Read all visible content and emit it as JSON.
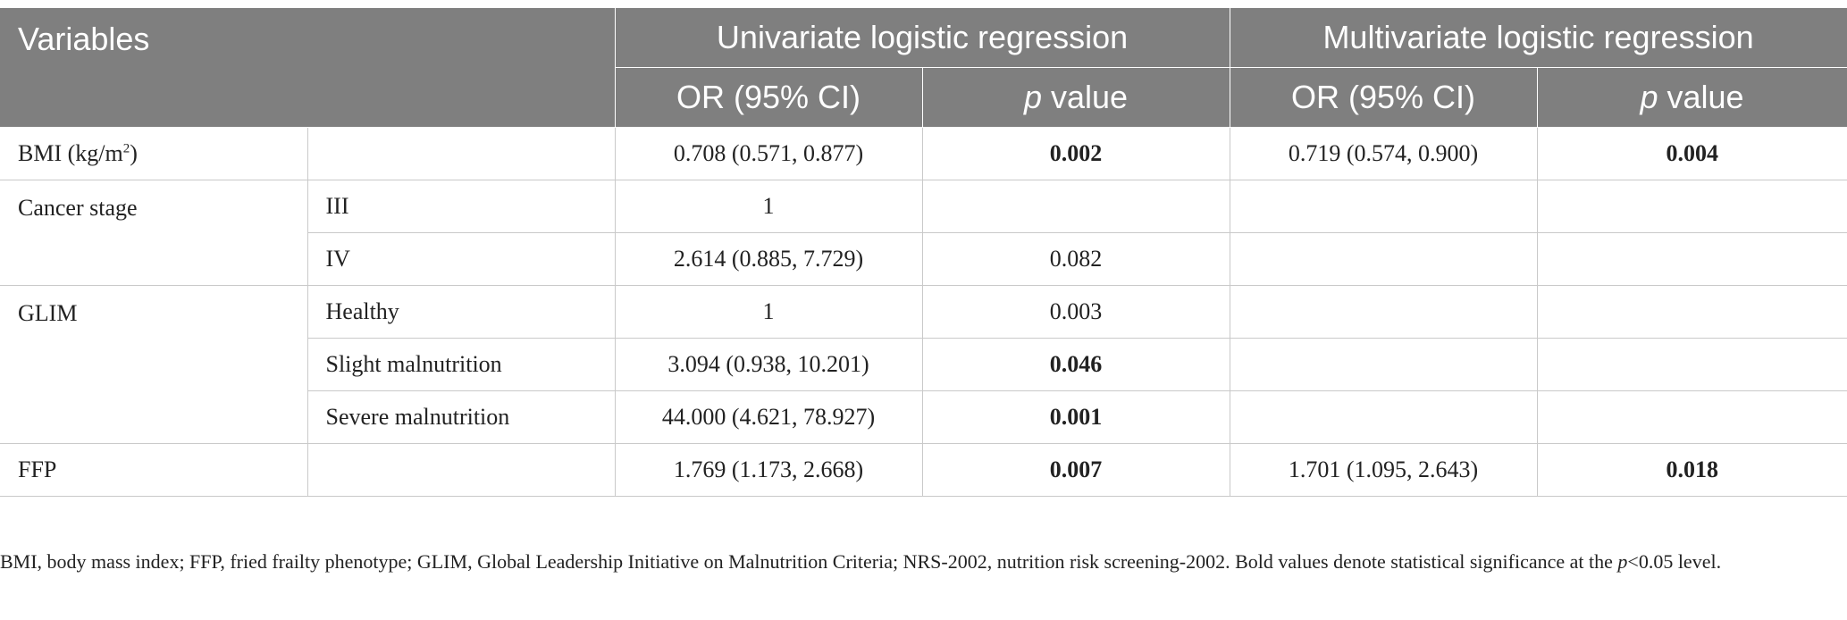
{
  "header": {
    "variables": "Variables",
    "univariate": "Univariate logistic regression",
    "multivariate": "Multivariate logistic regression",
    "or_ci": "OR (95% CI)",
    "p_italic": "p",
    "p_rest": " value"
  },
  "rows": {
    "bmi": {
      "label": "BMI (kg/m",
      "sup": "2",
      "label_end": ")",
      "uni_or": "0.708 (0.571, 0.877)",
      "uni_p": "0.002",
      "multi_or": "0.719 (0.574, 0.900)",
      "multi_p": "0.004"
    },
    "cancer": {
      "label": "Cancer stage",
      "iii": {
        "sub": "III",
        "uni_or": "1"
      },
      "iv": {
        "sub": "IV",
        "uni_or": "2.614 (0.885, 7.729)",
        "uni_p": "0.082"
      }
    },
    "glim": {
      "label": "GLIM",
      "healthy": {
        "sub": "Healthy",
        "uni_or": "1",
        "uni_p": "0.003"
      },
      "slight": {
        "sub": "Slight malnutrition",
        "uni_or": "3.094 (0.938, 10.201)",
        "uni_p": "0.046"
      },
      "severe": {
        "sub": "Severe malnutrition",
        "uni_or": "44.000 (4.621, 78.927)",
        "uni_p": "0.001"
      }
    },
    "ffp": {
      "label": "FFP",
      "uni_or": "1.769 (1.173, 2.668)",
      "uni_p": "0.007",
      "multi_or": "1.701 (1.095, 2.643)",
      "multi_p": "0.018"
    }
  },
  "footnote": {
    "part1": "BMI, body mass index; FFP, fried frailty phenotype; GLIM, Global Leadership Initiative on Malnutrition Criteria; NRS-2002, nutrition risk screening-2002. Bold values denote statistical significance at the ",
    "p": "p",
    "part2": "<0.05 level."
  }
}
